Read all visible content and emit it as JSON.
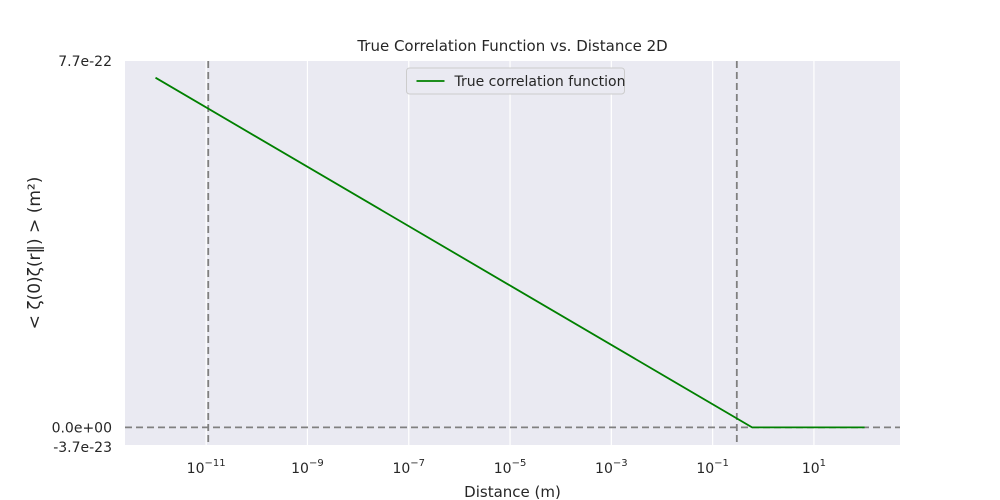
{
  "chart_data": {
    "type": "line",
    "title": "True Correlation Function vs. Distance 2D",
    "xlabel": "Distance (m)",
    "ylabel": "< ζ(0)ζ(r‖) > (m²)",
    "xscale": "log",
    "xlim": [
      2.5e-13,
      500
    ],
    "ylim": [
      -3.7e-23,
      7.7e-22
    ],
    "x_ticks": [
      {
        "value": 1e-11,
        "base": "10",
        "exp": "−11"
      },
      {
        "value": 1e-09,
        "base": "10",
        "exp": "−9"
      },
      {
        "value": 1e-07,
        "base": "10",
        "exp": "−7"
      },
      {
        "value": 1e-05,
        "base": "10",
        "exp": "−5"
      },
      {
        "value": 0.001,
        "base": "10",
        "exp": "−3"
      },
      {
        "value": 0.1,
        "base": "10",
        "exp": "−1"
      },
      {
        "value": 10,
        "base": "10",
        "exp": "1"
      }
    ],
    "y_ticks": [
      {
        "value": 7.7e-22,
        "label": "7.7e-22"
      },
      {
        "value": 0,
        "label": "0.0e+00"
      },
      {
        "value": -3.7e-23,
        "label": "-3.7e-23"
      }
    ],
    "series": [
      {
        "name": "True correlation function",
        "color": "#008000",
        "x": [
          1e-12,
          0.6,
          100
        ],
        "y": [
          7.35e-22,
          0,
          0
        ]
      }
    ],
    "reference_lines": {
      "vertical": [
        1.1e-11,
        0.3
      ],
      "horizontal": [
        0
      ],
      "color": "#808080",
      "style": "dashed"
    },
    "grid": true,
    "legend_position": "upper center",
    "colors": {
      "plot_background": "#eaeaf2",
      "grid": "#ffffff",
      "line": "#008000",
      "reference": "#808080"
    }
  }
}
